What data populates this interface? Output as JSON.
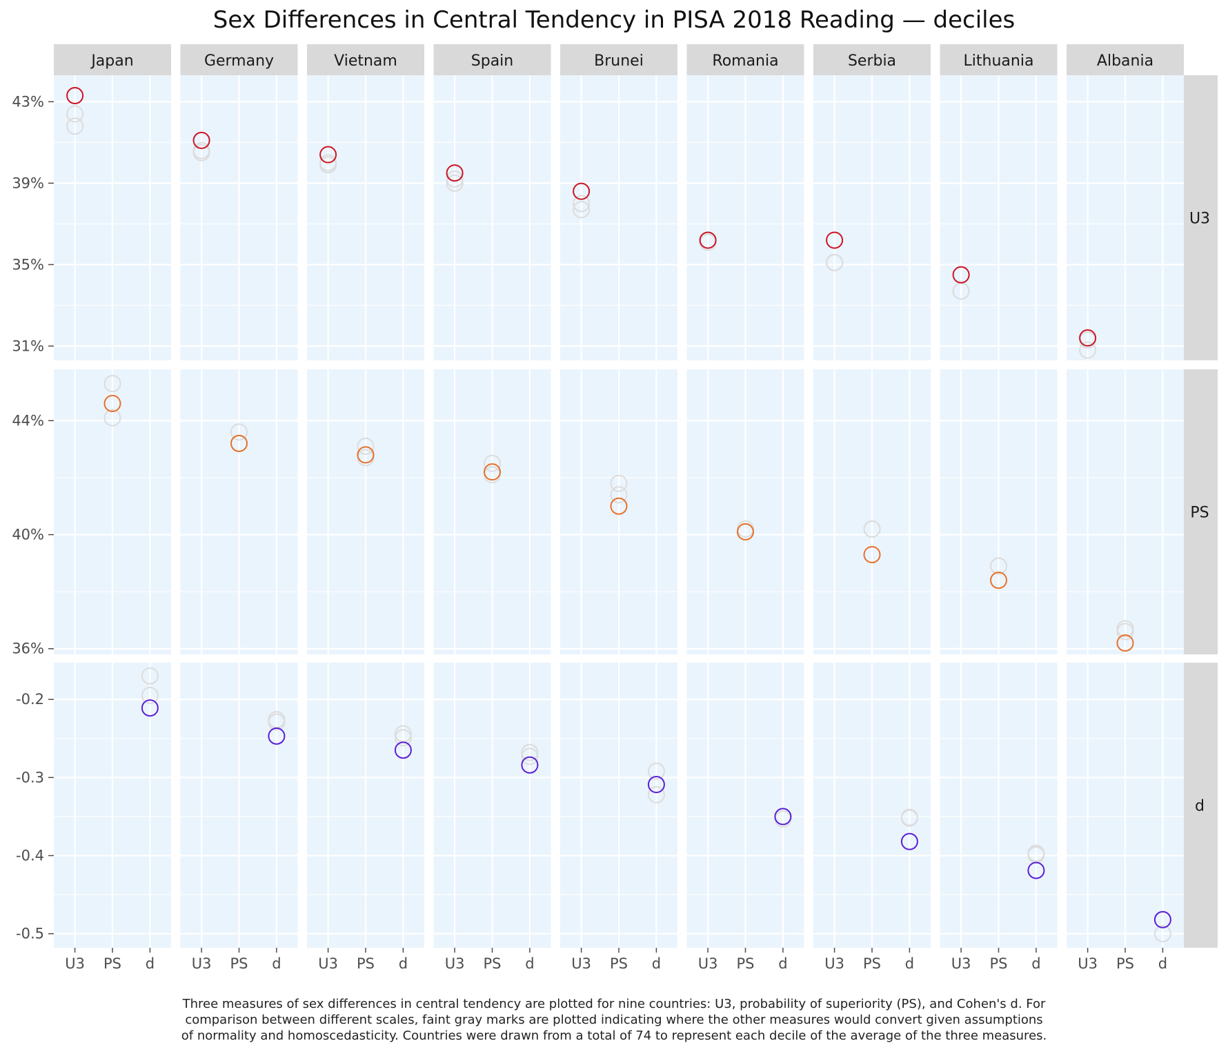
{
  "chart_data": {
    "type": "scatter",
    "title": "Sex Differences in Central Tendency in PISA 2018 Reading — deciles",
    "caption": [
      "Three measures of sex differences in central tendency are plotted for nine countries: U3, probability of superiority (PS), and Cohen's d. For",
      "comparison between different scales, faint gray marks are plotted indicating where the other measures would convert given assumptions",
      "of normality and homoscedasticity. Countries were drawn from a total of 74 to represent each decile of the average of the three measures."
    ],
    "countries": [
      "Japan",
      "Germany",
      "Vietnam",
      "Spain",
      "Brunei",
      "Romania",
      "Serbia",
      "Lithuania",
      "Albania"
    ],
    "measures": [
      "U3",
      "PS",
      "d"
    ],
    "colors": {
      "U3": "#cc1424",
      "PS": "#e8702a",
      "d": "#5a1fd6",
      "faint": "#dcdcdc"
    },
    "rows": [
      {
        "measure": "U3",
        "ylim": [
          0.303,
          0.443
        ],
        "ticks": [
          0.31,
          0.35,
          0.39,
          0.43
        ],
        "tick_labels": [
          "31%",
          "35%",
          "39%",
          "43%"
        ],
        "values": [
          0.433,
          0.411,
          0.404,
          0.395,
          0.386,
          0.362,
          0.362,
          0.345,
          0.314
        ],
        "faint_a": [
          0.424,
          0.406,
          0.4,
          0.392,
          0.38,
          0.361,
          0.351,
          0.337,
          0.313
        ],
        "faint_b": [
          0.418,
          0.405,
          0.399,
          0.39,
          0.377,
          0.361,
          0.351,
          0.337,
          0.308
        ]
      },
      {
        "measure": "PS",
        "ylim": [
          0.358,
          0.458
        ],
        "ticks": [
          0.36,
          0.4,
          0.44
        ],
        "tick_labels": [
          "36%",
          "40%",
          "44%"
        ],
        "values": [
          0.446,
          0.432,
          0.428,
          0.422,
          0.41,
          0.401,
          0.393,
          0.384,
          0.362
        ],
        "faint_a": [
          0.453,
          0.436,
          0.431,
          0.425,
          0.418,
          0.402,
          0.402,
          0.389,
          0.367
        ],
        "faint_b": [
          0.441,
          0.432,
          0.427,
          0.421,
          0.414,
          0.401,
          0.402,
          0.389,
          0.366
        ]
      },
      {
        "measure": "d",
        "ylim": [
          -0.518,
          -0.153
        ],
        "ticks": [
          -0.5,
          -0.4,
          -0.3,
          -0.2
        ],
        "tick_labels": [
          "-0.5",
          "-0.4",
          "-0.3",
          "-0.2"
        ],
        "values": [
          -0.211,
          -0.247,
          -0.265,
          -0.284,
          -0.309,
          -0.35,
          -0.382,
          -0.419,
          -0.482
        ],
        "faint_a": [
          -0.17,
          -0.226,
          -0.244,
          -0.268,
          -0.292,
          -0.35,
          -0.351,
          -0.397,
          -0.482
        ],
        "faint_b": [
          -0.195,
          -0.229,
          -0.249,
          -0.273,
          -0.322,
          -0.353,
          -0.352,
          -0.399,
          -0.5
        ]
      }
    ]
  }
}
